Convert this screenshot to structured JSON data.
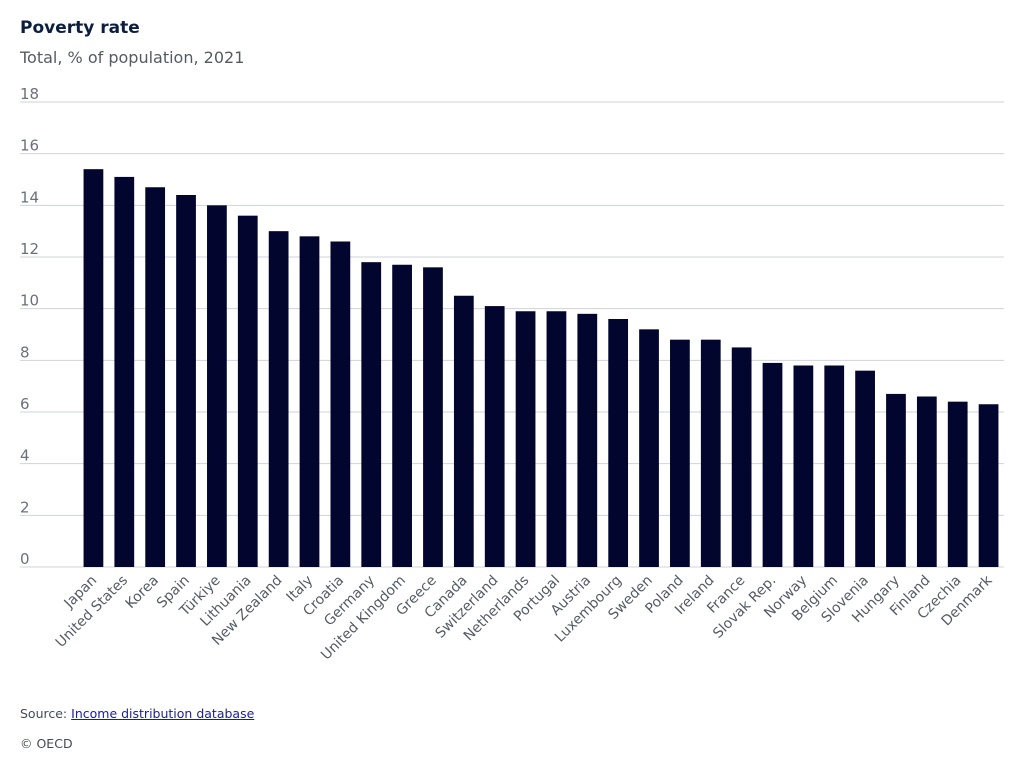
{
  "title": "Poverty rate",
  "subtitle": "Total, % of population, 2021",
  "source": {
    "label": "Source:",
    "link_text": "Income distribution database"
  },
  "copyright": "© OECD",
  "colors": {
    "bar": "#02062f",
    "grid": "#d0d3d8",
    "tick_text": "#6b717c"
  },
  "chart_data": {
    "type": "bar",
    "title": "Poverty rate",
    "subtitle": "Total, % of population, 2021",
    "categories": [
      "Japan",
      "United States",
      "Korea",
      "Spain",
      "Türkiye",
      "Lithuania",
      "New Zealand",
      "Italy",
      "Croatia",
      "Germany",
      "United Kingdom",
      "Greece",
      "Canada",
      "Switzerland",
      "Netherlands",
      "Portugal",
      "Austria",
      "Luxembourg",
      "Sweden",
      "Poland",
      "Ireland",
      "France",
      "Slovak Rep.",
      "Norway",
      "Belgium",
      "Slovenia",
      "Hungary",
      "Finland",
      "Czechia",
      "Denmark"
    ],
    "values": [
      15.4,
      15.1,
      14.7,
      14.4,
      14.0,
      13.6,
      13.0,
      12.8,
      12.6,
      11.8,
      11.7,
      11.6,
      10.5,
      10.1,
      9.9,
      9.9,
      9.8,
      9.6,
      9.2,
      8.8,
      8.8,
      8.5,
      7.9,
      7.8,
      7.8,
      7.6,
      6.7,
      6.6,
      6.4,
      6.3
    ],
    "ylim": [
      0,
      18
    ],
    "yticks": [
      0,
      2,
      4,
      6,
      8,
      10,
      12,
      14,
      16,
      18
    ],
    "grid": true,
    "legend": "none"
  }
}
